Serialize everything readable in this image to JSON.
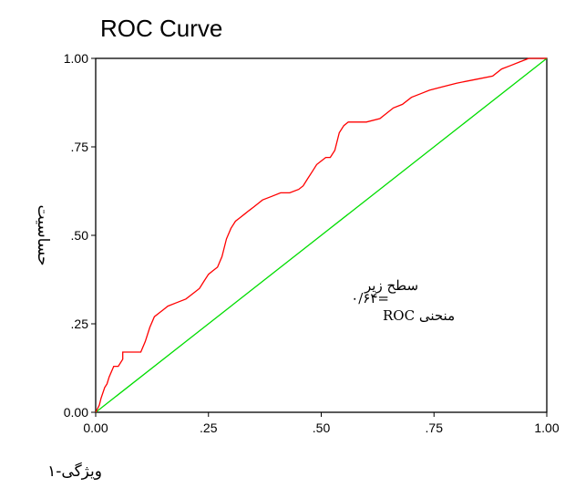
{
  "chart_data": {
    "type": "line",
    "title": "ROC Curve",
    "xlabel": "ویژگی-۱",
    "ylabel": "حساسیت",
    "xlim": [
      0,
      1
    ],
    "ylim": [
      0,
      1
    ],
    "x_ticks": [
      "0.00",
      ".25",
      ".50",
      ".75",
      "1.00"
    ],
    "y_ticks": [
      "0.00",
      ".25",
      ".50",
      ".75",
      "1.00"
    ],
    "grid": false,
    "annotation": {
      "line1": "سطح زیر",
      "line2": "منحنی ROC",
      "value": "=۰/۶۴"
    },
    "series": [
      {
        "color": "#ff0000",
        "x": [
          0,
          0.008,
          0.012,
          0.02,
          0.025,
          0.03,
          0.04,
          0.05,
          0.06,
          0.06,
          0.07,
          0.1,
          0.11,
          0.12,
          0.13,
          0.14,
          0.15,
          0.16,
          0.18,
          0.2,
          0.21,
          0.22,
          0.23,
          0.24,
          0.25,
          0.26,
          0.27,
          0.28,
          0.29,
          0.3,
          0.31,
          0.32,
          0.33,
          0.34,
          0.35,
          0.36,
          0.37,
          0.39,
          0.41,
          0.43,
          0.45,
          0.46,
          0.47,
          0.48,
          0.49,
          0.5,
          0.51,
          0.52,
          0.53,
          0.54,
          0.55,
          0.56,
          0.57,
          0.58,
          0.6,
          0.63,
          0.64,
          0.66,
          0.68,
          0.7,
          0.72,
          0.74,
          0.77,
          0.8,
          0.84,
          0.88,
          0.9,
          0.92,
          0.94,
          0.96,
          1.0
        ],
        "y": [
          0,
          0.02,
          0.04,
          0.07,
          0.08,
          0.1,
          0.13,
          0.13,
          0.15,
          0.17,
          0.17,
          0.17,
          0.2,
          0.24,
          0.27,
          0.28,
          0.29,
          0.3,
          0.31,
          0.32,
          0.33,
          0.34,
          0.35,
          0.37,
          0.39,
          0.4,
          0.41,
          0.44,
          0.49,
          0.52,
          0.54,
          0.55,
          0.56,
          0.57,
          0.58,
          0.59,
          0.6,
          0.61,
          0.62,
          0.62,
          0.63,
          0.64,
          0.66,
          0.68,
          0.7,
          0.71,
          0.72,
          0.72,
          0.74,
          0.79,
          0.81,
          0.82,
          0.82,
          0.82,
          0.82,
          0.83,
          0.84,
          0.86,
          0.87,
          0.89,
          0.9,
          0.91,
          0.92,
          0.93,
          0.94,
          0.95,
          0.97,
          0.98,
          0.99,
          1.0,
          1.0
        ]
      },
      {
        "color": "#00dd00",
        "x": [
          0,
          1
        ],
        "y": [
          0,
          1
        ]
      }
    ]
  }
}
